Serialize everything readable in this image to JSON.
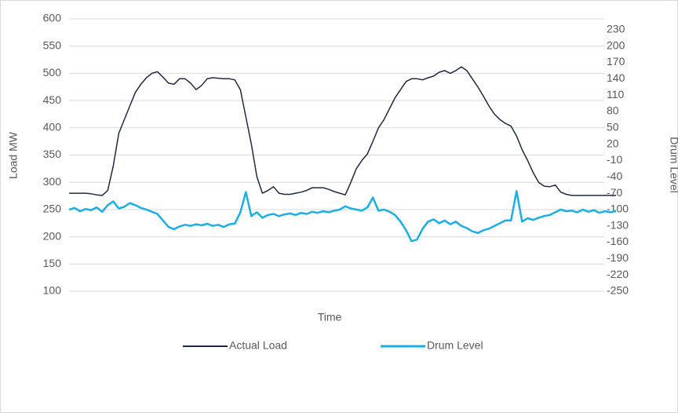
{
  "chart_data": {
    "type": "line",
    "xlabel": "Time",
    "ylabel": "Load MW",
    "y2label": "Drum Level",
    "ylim": [
      100,
      600
    ],
    "yticks": [
      100,
      150,
      200,
      250,
      300,
      350,
      400,
      450,
      500,
      550,
      600
    ],
    "y2lim": [
      -250,
      250
    ],
    "y2ticks": [
      -250,
      -220,
      -190,
      -160,
      -130,
      -100,
      -70,
      -40,
      -10,
      20,
      50,
      80,
      110,
      140,
      170,
      200,
      230
    ],
    "grid": true,
    "legend": "bottom",
    "series": [
      {
        "name": "Actual Load",
        "color": "#1e2a44",
        "values": [
          280,
          280,
          280,
          280,
          279,
          277,
          276,
          285,
          330,
          390,
          415,
          440,
          465,
          480,
          492,
          500,
          503,
          493,
          482,
          480,
          490,
          490,
          482,
          470,
          478,
          490,
          492,
          491,
          490,
          490,
          488,
          470,
          420,
          370,
          310,
          280,
          285,
          292,
          280,
          278,
          278,
          280,
          282,
          285,
          290,
          290,
          290,
          287,
          283,
          280,
          277,
          300,
          325,
          340,
          352,
          375,
          400,
          415,
          435,
          455,
          470,
          485,
          490,
          490,
          488,
          492,
          495,
          502,
          505,
          500,
          505,
          512,
          505,
          490,
          475,
          458,
          440,
          425,
          415,
          408,
          403,
          385,
          360,
          340,
          318,
          300,
          293,
          292,
          295,
          282,
          278,
          276,
          276,
          276,
          276,
          276,
          276,
          276,
          276,
          276
        ]
      },
      {
        "name": "Drum Level",
        "color": "#1aafe6",
        "axis": "y2",
        "values": [
          -100,
          -97,
          -103,
          -99,
          -101,
          -96,
          -104,
          -92,
          -85,
          -98,
          -95,
          -88,
          -92,
          -97,
          -100,
          -104,
          -108,
          -120,
          -132,
          -136,
          -131,
          -128,
          -130,
          -127,
          -129,
          -126,
          -130,
          -128,
          -132,
          -127,
          -126,
          -105,
          -68,
          -112,
          -105,
          -115,
          -110,
          -108,
          -112,
          -109,
          -107,
          -110,
          -106,
          -108,
          -104,
          -106,
          -103,
          -105,
          -102,
          -100,
          -94,
          -98,
          -100,
          -102,
          -96,
          -78,
          -102,
          -100,
          -104,
          -110,
          -122,
          -138,
          -158,
          -155,
          -135,
          -122,
          -118,
          -125,
          -120,
          -127,
          -122,
          -130,
          -134,
          -140,
          -143,
          -138,
          -135,
          -130,
          -125,
          -120,
          -120,
          -66,
          -122,
          -116,
          -119,
          -115,
          -112,
          -110,
          -105,
          -100,
          -103,
          -102,
          -105,
          -100,
          -104,
          -101,
          -106,
          -103,
          -105,
          -102
        ]
      }
    ]
  }
}
